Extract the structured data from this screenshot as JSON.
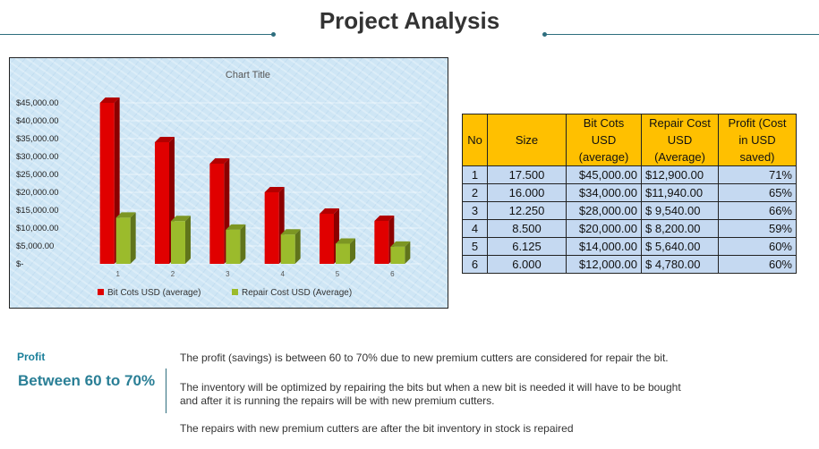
{
  "page": {
    "title": "Project Analysis"
  },
  "chart_data": {
    "type": "bar",
    "title": "Chart Title",
    "categories": [
      "1",
      "2",
      "3",
      "4",
      "5",
      "6"
    ],
    "series": [
      {
        "name": "Bit Cots USD  (average)",
        "values": [
          45000,
          34000,
          28000,
          20000,
          14000,
          12000
        ],
        "color": "#e00000"
      },
      {
        "name": "Repair Cost USD  (Average)",
        "values": [
          12900,
          11940,
          9540,
          8200,
          5640,
          4780
        ],
        "color": "#9bbb2c"
      }
    ],
    "ylim": [
      0,
      45000
    ],
    "ytick_values": [
      0,
      5000,
      10000,
      15000,
      20000,
      25000,
      30000,
      35000,
      40000,
      45000
    ],
    "ytick_labels": [
      "$-",
      "$5,000.00",
      "$10,000.00",
      "$15,000.00",
      "$20,000.00",
      "$25,000.00",
      "$30,000.00",
      "$35,000.00",
      "$40,000.00",
      "$45,000.00"
    ],
    "grid": true,
    "legend": "bottom",
    "style": "3d-column"
  },
  "table": {
    "headers": {
      "no": "No",
      "size": "Size",
      "bit": [
        "Bit Cots",
        "USD",
        "(average)"
      ],
      "repair": [
        "Repair Cost",
        "USD",
        "(Average)"
      ],
      "profit": [
        "Profit (Cost",
        "in USD",
        "saved)"
      ]
    },
    "rows": [
      {
        "no": "1",
        "size": "17.500",
        "bit": "$45,000.00",
        "repair": "$12,900.00",
        "profit": "71%"
      },
      {
        "no": "2",
        "size": "16.000",
        "bit": "$34,000.00",
        "repair": "$11,940.00",
        "profit": "65%"
      },
      {
        "no": "3",
        "size": "12.250",
        "bit": "$28,000.00",
        "repair": "$ 9,540.00",
        "profit": "66%"
      },
      {
        "no": "4",
        "size": "8.500",
        "bit": "$20,000.00",
        "repair": "$ 8,200.00",
        "profit": "59%"
      },
      {
        "no": "5",
        "size": "6.125",
        "bit": "$14,000.00",
        "repair": "$ 5,640.00",
        "profit": "60%"
      },
      {
        "no": "6",
        "size": "6.000",
        "bit": "$12,000.00",
        "repair": "$ 4,780.00",
        "profit": "60%"
      }
    ]
  },
  "summary": {
    "label": "Profit",
    "range": "Between 60 to 70%",
    "notes": [
      "The profit (savings) is between 60 to 70% due to new premium cutters are considered for repair the bit.",
      "The inventory will be optimized by repairing the bits but when a new bit is needed it will have to be bought",
      "and after it is running the repairs will be with new premium cutters.",
      "The repairs with new premium cutters are after the bit inventory in stock is repaired"
    ]
  }
}
